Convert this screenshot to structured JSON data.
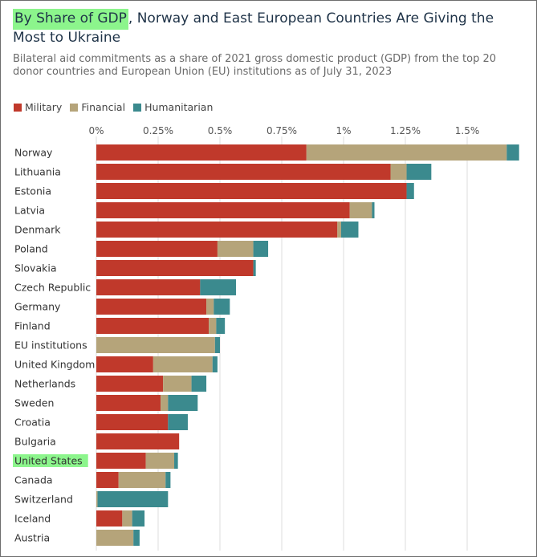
{
  "title": {
    "highlight": "By Share of GDP",
    "rest": ", Norway and East European Countries Are Giving the Most to Ukraine"
  },
  "subtitle": "Bilateral aid commitments as a share of 2021 gross domestic product (GDP) from the top 20 donor countries and European Union (EU) institutions as of July 31, 2023",
  "colors": {
    "military": "#c0392b",
    "financial": "#b5a47a",
    "humanitarian": "#3b8a8e",
    "highlight": "#8cf58c",
    "grid": "#dddddd"
  },
  "chart_data": {
    "type": "bar",
    "orientation": "horizontal",
    "stacked": true,
    "x_ticks": [
      {
        "value": 0,
        "label": "0%"
      },
      {
        "value": 0.25,
        "label": "0.25%"
      },
      {
        "value": 0.5,
        "label": "0.5%"
      },
      {
        "value": 0.75,
        "label": "0.75%"
      },
      {
        "value": 1,
        "label": "1%"
      },
      {
        "value": 1.25,
        "label": "1.25%"
      },
      {
        "value": 1.5,
        "label": "1.5%"
      }
    ],
    "xlim": [
      0,
      1.72
    ],
    "legend": [
      "Military",
      "Financial",
      "Humanitarian"
    ],
    "legend_position": "top-left",
    "highlighted_category": "United States",
    "categories": [
      "Norway",
      "Lithuania",
      "Estonia",
      "Latvia",
      "Denmark",
      "Poland",
      "Slovakia",
      "Czech Republic",
      "Germany",
      "Finland",
      "EU institutions",
      "United Kingdom",
      "Netherlands",
      "Sweden",
      "Croatia",
      "Bulgaria",
      "United States",
      "Canada",
      "Switzerland",
      "Iceland",
      "Austria"
    ],
    "series": [
      {
        "name": "Military",
        "values": [
          0.85,
          1.19,
          1.255,
          1.025,
          0.975,
          0.49,
          0.635,
          0.42,
          0.445,
          0.455,
          0,
          0.23,
          0.27,
          0.26,
          0.29,
          0.335,
          0.2,
          0.09,
          0,
          0.105,
          0
        ]
      },
      {
        "name": "Financial",
        "values": [
          0.81,
          0.065,
          0,
          0.09,
          0.015,
          0.145,
          0,
          0,
          0.03,
          0.03,
          0.48,
          0.24,
          0.115,
          0.03,
          0,
          0,
          0.115,
          0.19,
          0.005,
          0.04,
          0.15
        ]
      },
      {
        "name": "Humanitarian",
        "values": [
          0.05,
          0.1,
          0.03,
          0.01,
          0.07,
          0.06,
          0.01,
          0.145,
          0.065,
          0.035,
          0.02,
          0.02,
          0.06,
          0.12,
          0.08,
          0,
          0.015,
          0.02,
          0.285,
          0.05,
          0.025
        ]
      }
    ]
  }
}
